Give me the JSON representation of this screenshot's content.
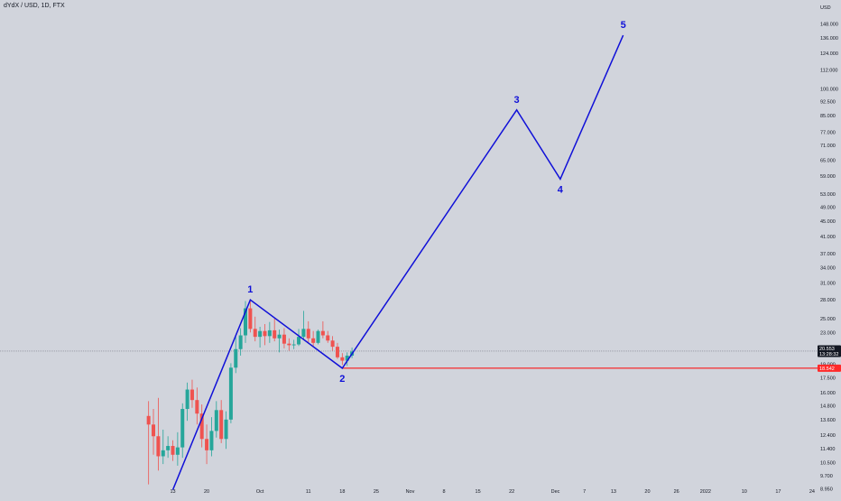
{
  "header": {
    "symbol": "dYdX / USD, 1D, FTX"
  },
  "colors": {
    "background": "#d1d4dc",
    "up": "#26a69a",
    "down": "#ef5350",
    "wave": "#1010d8",
    "support": "#ff0000",
    "price_line": "#787b86",
    "price_badge": "#131722",
    "support_badge": "#ff2a2a"
  },
  "chart_data": {
    "type": "candlestick",
    "scale": "log",
    "currency": "USD",
    "ylim": [
      8.6,
      168
    ],
    "yticks": [
      "148.000",
      "136.000",
      "124.000",
      "112.000",
      "100.000",
      "92.500",
      "85.000",
      "77.000",
      "71.000",
      "65.000",
      "59.000",
      "53.000",
      "49.000",
      "45.000",
      "41.000",
      "37.000",
      "34.000",
      "31.000",
      "28.000",
      "25.000",
      "23.000",
      "20.500",
      "19.000",
      "17.500",
      "16.000",
      "14.800",
      "13.600",
      "12.400",
      "11.400",
      "10.500",
      "9.700",
      "8.950"
    ],
    "x_axis_labels": [
      {
        "label": "13",
        "day": 0
      },
      {
        "label": "20",
        "day": 7
      },
      {
        "label": "Oct",
        "day": 18
      },
      {
        "label": "11",
        "day": 28
      },
      {
        "label": "18",
        "day": 35
      },
      {
        "label": "25",
        "day": 42
      },
      {
        "label": "Nov",
        "day": 49
      },
      {
        "label": "8",
        "day": 56
      },
      {
        "label": "15",
        "day": 63
      },
      {
        "label": "22",
        "day": 70
      },
      {
        "label": "Dec",
        "day": 79
      },
      {
        "label": "7",
        "day": 85
      },
      {
        "label": "13",
        "day": 91
      },
      {
        "label": "20",
        "day": 98
      },
      {
        "label": "26",
        "day": 104
      },
      {
        "label": "2022",
        "day": 110
      },
      {
        "label": "10",
        "day": 118
      },
      {
        "label": "17",
        "day": 125
      },
      {
        "label": "24",
        "day": 132
      }
    ],
    "candles": [
      {
        "day": -5,
        "o": 13.9,
        "h": 15.2,
        "l": 9.2,
        "c": 13.2
      },
      {
        "day": -4,
        "o": 13.2,
        "h": 14.5,
        "l": 11.0,
        "c": 12.3
      },
      {
        "day": -3,
        "o": 12.3,
        "h": 15.5,
        "l": 10.0,
        "c": 10.9
      },
      {
        "day": -2,
        "o": 10.9,
        "h": 12.8,
        "l": 10.4,
        "c": 11.3
      },
      {
        "day": -1,
        "o": 11.3,
        "h": 12.3,
        "l": 10.8,
        "c": 11.6
      },
      {
        "day": 0,
        "o": 11.6,
        "h": 12.0,
        "l": 10.6,
        "c": 11.0
      },
      {
        "day": 1,
        "o": 11.0,
        "h": 12.6,
        "l": 10.3,
        "c": 11.5
      },
      {
        "day": 2,
        "o": 11.5,
        "h": 15.0,
        "l": 10.8,
        "c": 14.5
      },
      {
        "day": 3,
        "o": 14.5,
        "h": 17.0,
        "l": 13.5,
        "c": 16.3
      },
      {
        "day": 4,
        "o": 16.3,
        "h": 17.3,
        "l": 14.6,
        "c": 15.3
      },
      {
        "day": 5,
        "o": 15.3,
        "h": 16.5,
        "l": 13.2,
        "c": 14.1
      },
      {
        "day": 6,
        "o": 14.1,
        "h": 14.9,
        "l": 11.5,
        "c": 12.1
      },
      {
        "day": 7,
        "o": 12.1,
        "h": 13.2,
        "l": 10.4,
        "c": 11.3
      },
      {
        "day": 8,
        "o": 11.3,
        "h": 13.8,
        "l": 10.9,
        "c": 12.7
      },
      {
        "day": 9,
        "o": 12.7,
        "h": 15.2,
        "l": 12.2,
        "c": 14.4
      },
      {
        "day": 10,
        "o": 14.4,
        "h": 15.3,
        "l": 11.8,
        "c": 12.1
      },
      {
        "day": 11,
        "o": 12.1,
        "h": 14.3,
        "l": 11.4,
        "c": 13.6
      },
      {
        "day": 12,
        "o": 13.6,
        "h": 19.1,
        "l": 13.3,
        "c": 18.6
      },
      {
        "day": 13,
        "o": 18.6,
        "h": 22.4,
        "l": 18.0,
        "c": 20.8
      },
      {
        "day": 14,
        "o": 20.8,
        "h": 23.6,
        "l": 20.0,
        "c": 22.6
      },
      {
        "day": 15,
        "o": 22.6,
        "h": 27.8,
        "l": 21.6,
        "c": 26.6
      },
      {
        "day": 16,
        "o": 26.6,
        "h": 28.0,
        "l": 23.0,
        "c": 23.5
      },
      {
        "day": 17,
        "o": 23.5,
        "h": 25.3,
        "l": 21.8,
        "c": 22.4
      },
      {
        "day": 18,
        "o": 22.4,
        "h": 23.8,
        "l": 21.0,
        "c": 23.2
      },
      {
        "day": 19,
        "o": 23.2,
        "h": 24.2,
        "l": 21.3,
        "c": 22.5
      },
      {
        "day": 20,
        "o": 22.5,
        "h": 24.5,
        "l": 21.6,
        "c": 23.3
      },
      {
        "day": 21,
        "o": 23.3,
        "h": 25.0,
        "l": 21.8,
        "c": 22.2
      },
      {
        "day": 22,
        "o": 22.2,
        "h": 23.4,
        "l": 20.4,
        "c": 22.7
      },
      {
        "day": 23,
        "o": 22.7,
        "h": 23.6,
        "l": 20.9,
        "c": 21.5
      },
      {
        "day": 24,
        "o": 21.5,
        "h": 22.2,
        "l": 20.6,
        "c": 21.3
      },
      {
        "day": 25,
        "o": 21.3,
        "h": 22.0,
        "l": 20.8,
        "c": 21.4
      },
      {
        "day": 26,
        "o": 21.4,
        "h": 23.5,
        "l": 21.2,
        "c": 22.4
      },
      {
        "day": 27,
        "o": 22.4,
        "h": 26.2,
        "l": 22.0,
        "c": 23.5
      },
      {
        "day": 28,
        "o": 23.5,
        "h": 24.6,
        "l": 21.6,
        "c": 22.2
      },
      {
        "day": 29,
        "o": 22.2,
        "h": 23.2,
        "l": 21.2,
        "c": 21.6
      },
      {
        "day": 30,
        "o": 21.6,
        "h": 23.4,
        "l": 21.4,
        "c": 23.2
      },
      {
        "day": 31,
        "o": 23.2,
        "h": 24.6,
        "l": 22.2,
        "c": 22.6
      },
      {
        "day": 32,
        "o": 22.6,
        "h": 23.2,
        "l": 21.6,
        "c": 21.9
      },
      {
        "day": 33,
        "o": 21.9,
        "h": 22.5,
        "l": 20.6,
        "c": 21.1
      },
      {
        "day": 34,
        "o": 21.1,
        "h": 21.6,
        "l": 19.6,
        "c": 19.8
      },
      {
        "day": 35,
        "o": 19.8,
        "h": 20.3,
        "l": 18.9,
        "c": 19.4
      },
      {
        "day": 36,
        "o": 19.4,
        "h": 20.4,
        "l": 18.8,
        "c": 20.0
      },
      {
        "day": 37,
        "o": 20.0,
        "h": 21.0,
        "l": 19.7,
        "c": 20.5
      }
    ],
    "wave_points": [
      {
        "label": "",
        "day": 0,
        "price": 8.9
      },
      {
        "label": "1",
        "day": 16,
        "price": 28.0
      },
      {
        "label": "2",
        "day": 35,
        "price": 18.542
      },
      {
        "label": "3",
        "day": 71,
        "price": 88.0
      },
      {
        "label": "4",
        "day": 80,
        "price": 58.0
      },
      {
        "label": "5",
        "day": 93,
        "price": 138.0
      }
    ],
    "support_level": {
      "price": 18.542,
      "label": "18.542",
      "from_day": 35
    },
    "current_price": {
      "price": 20.553,
      "label": "20.553",
      "countdown": "13:28:32"
    }
  }
}
